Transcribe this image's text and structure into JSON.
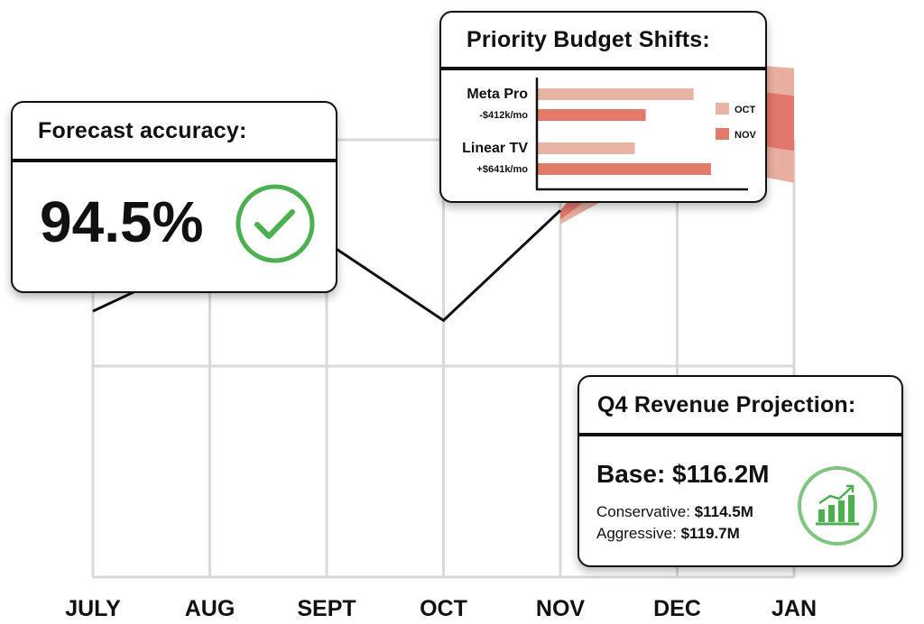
{
  "chart_data": [
    {
      "type": "line",
      "categories": [
        "JULY",
        "AUG",
        "SEPT",
        "OCT",
        "NOV",
        "DEC",
        "JAN"
      ],
      "series": [
        {
          "values": [
            58,
            70,
            73,
            56,
            80,
            null,
            null
          ]
        }
      ],
      "forecast_band": {
        "x": [
          "NOV",
          "DEC",
          "JAN"
        ],
        "outer": {
          "upper": [
            80,
            113,
            111
          ],
          "lower": [
            77,
            91,
            86
          ]
        },
        "inner": {
          "upper": [
            80,
            108,
            105
          ],
          "lower": [
            78,
            97,
            93
          ]
        }
      },
      "ylim": [
        0,
        120
      ],
      "grid": true,
      "colors": {
        "line": "#111111",
        "band_outer": "#e8ae9f",
        "band_inner": "#e2776b",
        "grid": "#d9d9d9"
      }
    },
    {
      "type": "bar",
      "orientation": "horizontal",
      "title": "Priority Budget Shifts:",
      "categories": [
        {
          "name": "Meta Pro",
          "note": "-$412k/mo"
        },
        {
          "name": "Linear TV",
          "note": "+$641k/mo"
        }
      ],
      "series": [
        {
          "name": "OCT",
          "color": "#e8b4a6",
          "values": [
            7.2,
            4.5
          ]
        },
        {
          "name": "NOV",
          "color": "#e27a69",
          "values": [
            5.0,
            8.0
          ]
        }
      ],
      "xlim": [
        0,
        8.5
      ],
      "legend_position": "right"
    }
  ],
  "accuracy": {
    "title": "Forecast accuracy:",
    "value": "94.5%",
    "icon": "check-circle-icon",
    "icon_color": "#4caf50"
  },
  "projection": {
    "title": "Q4 Revenue Projection:",
    "base_label": "Base:",
    "base_value": "$116.2M",
    "conservative_label": "Conservative:",
    "conservative_value": "$114.5M",
    "aggressive_label": "Aggressive:",
    "aggressive_value": "$119.7M",
    "icon": "growth-bar-chart-icon",
    "icon_color": "#4caf50"
  }
}
